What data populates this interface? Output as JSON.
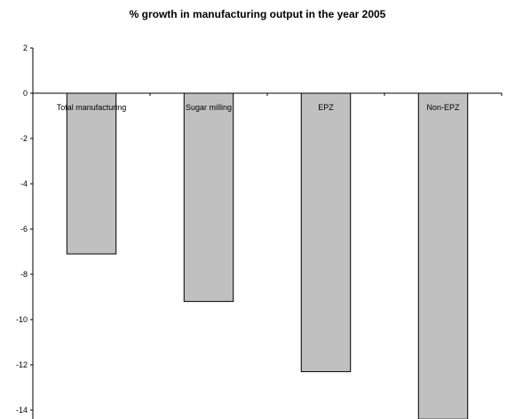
{
  "chart_data": {
    "type": "bar",
    "title": "% growth in manufacturing output in the year 2005",
    "xlabel": "",
    "ylabel": "",
    "categories": [
      "Total manufacturing",
      "Sugar milling",
      "EPZ",
      "Non-EPZ"
    ],
    "values": [
      -7.1,
      -9.2,
      -12.3,
      -14.4
    ],
    "ylim": [
      -14,
      2
    ],
    "yticks": [
      2,
      0,
      -2,
      -4,
      -6,
      -8,
      -10,
      -12,
      -14
    ],
    "grid": false,
    "legend": "none",
    "colors": {
      "bar_fill": "#c0c0c0",
      "bar_stroke": "#000000",
      "axis": "#000000"
    }
  }
}
